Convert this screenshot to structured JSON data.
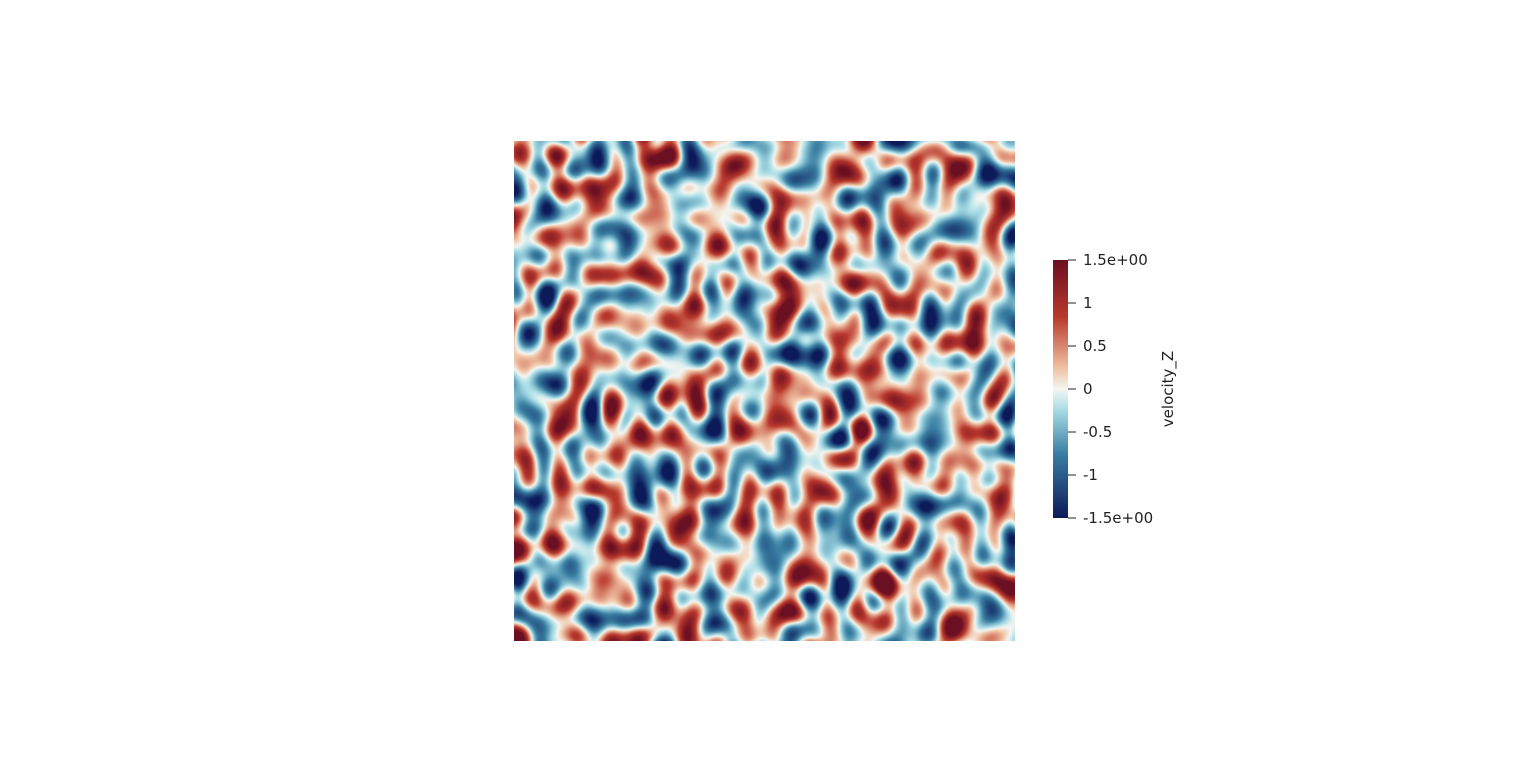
{
  "chart_data": {
    "type": "heatmap",
    "title": "",
    "colorbar": {
      "title": "velocity_Z",
      "range": [
        -1.5,
        1.5
      ],
      "colormap": "blue-white-red diverging",
      "colors": {
        "min": "#0c1a5a",
        "low": "#3a7fa3",
        "mid_low": "#a9dde6",
        "zero": "#f4f6f2",
        "mid_high": "#f0c2a3",
        "high": "#b9382c",
        "max": "#6b0f22"
      },
      "ticks": [
        {
          "value": 1.5,
          "label": "1.5e+00"
        },
        {
          "value": 1,
          "label": "1"
        },
        {
          "value": 0.5,
          "label": "0.5"
        },
        {
          "value": 0,
          "label": "0"
        },
        {
          "value": -0.5,
          "label": "-0.5"
        },
        {
          "value": -1,
          "label": "-1"
        },
        {
          "value": -1.5,
          "label": "-1.5e+00"
        }
      ]
    }
  }
}
